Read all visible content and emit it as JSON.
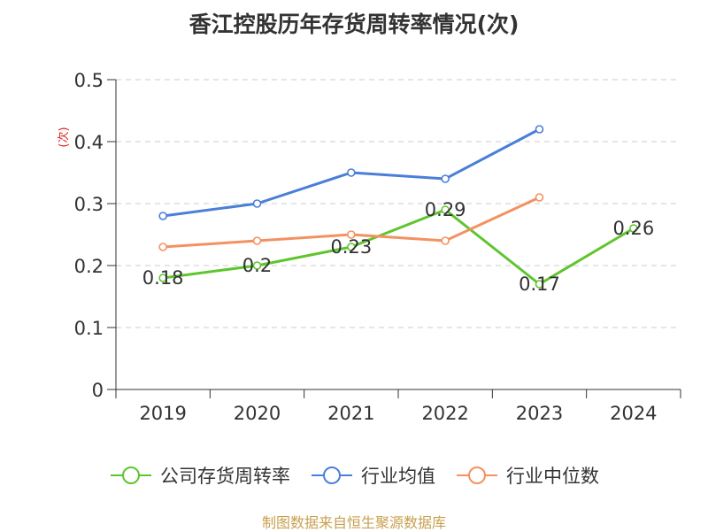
{
  "chart_data": {
    "type": "line",
    "title": "香江控股历年存货周转率情况(次)",
    "ylabel": "(次)",
    "categories": [
      "2019",
      "2020",
      "2021",
      "2022",
      "2023",
      "2024"
    ],
    "ylim": [
      0,
      0.5
    ],
    "yticks": [
      "0",
      "0.1",
      "0.2",
      "0.3",
      "0.4",
      "0.5"
    ],
    "grid": true,
    "legend_position": "bottom",
    "series": [
      {
        "name": "公司存货周转率",
        "color": "#5fc52e",
        "values": [
          0.18,
          0.2,
          0.23,
          0.29,
          0.17,
          0.26
        ],
        "labels": [
          "0.18",
          "0.2",
          "0.23",
          "0.29",
          "0.17",
          "0.26"
        ]
      },
      {
        "name": "行业均值",
        "color": "#4a7fd8",
        "values": [
          0.28,
          0.3,
          0.35,
          0.34,
          0.42,
          null
        ]
      },
      {
        "name": "行业中位数",
        "color": "#f49160",
        "values": [
          0.23,
          0.24,
          0.25,
          0.24,
          0.31,
          null
        ]
      }
    ]
  },
  "footer": {
    "source": "制图数据来自恒生聚源数据库"
  }
}
